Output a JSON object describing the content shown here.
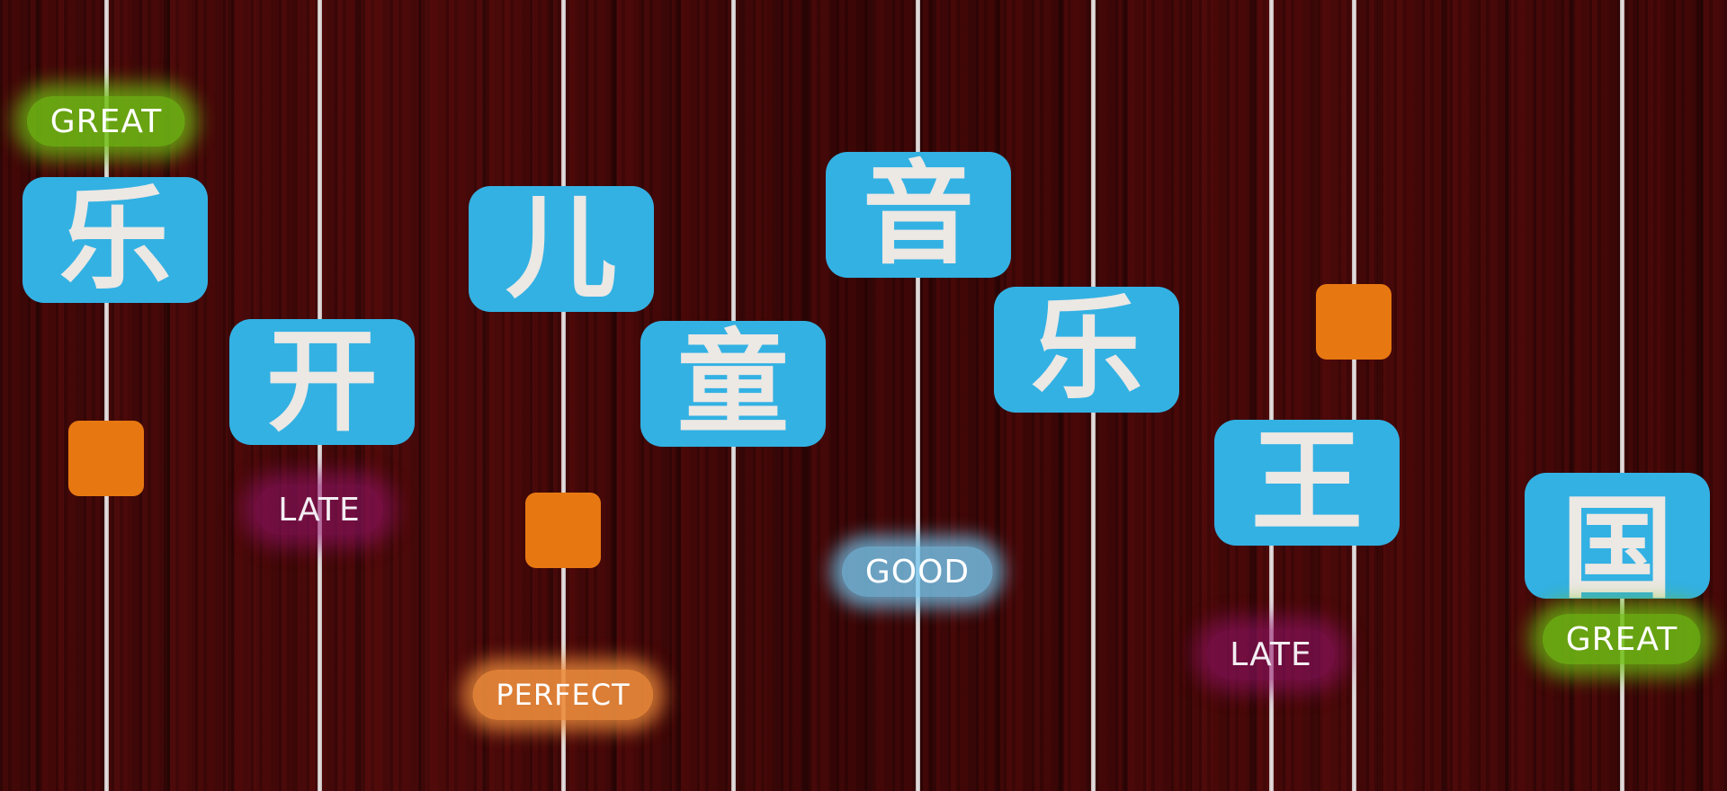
{
  "game": {
    "notes": [
      {
        "char": "乐"
      },
      {
        "char": "开"
      },
      {
        "char": "儿"
      },
      {
        "char": "童"
      },
      {
        "char": "音"
      },
      {
        "char": "乐"
      },
      {
        "char": "王"
      },
      {
        "char": "国"
      }
    ],
    "judgements": [
      {
        "text": "GREAT"
      },
      {
        "text": "LATE"
      },
      {
        "text": "PERFECT"
      },
      {
        "text": "GOOD"
      },
      {
        "text": "LATE"
      },
      {
        "text": "GREAT"
      }
    ]
  },
  "colors": {
    "tile": "#33b1e3",
    "tile_text": "#ece8e4",
    "square": "#e77811",
    "great": "#70be14",
    "late": "#96146e",
    "good": "#78c8f0",
    "perfect": "#ec8c3c",
    "background": "#3a0606"
  }
}
